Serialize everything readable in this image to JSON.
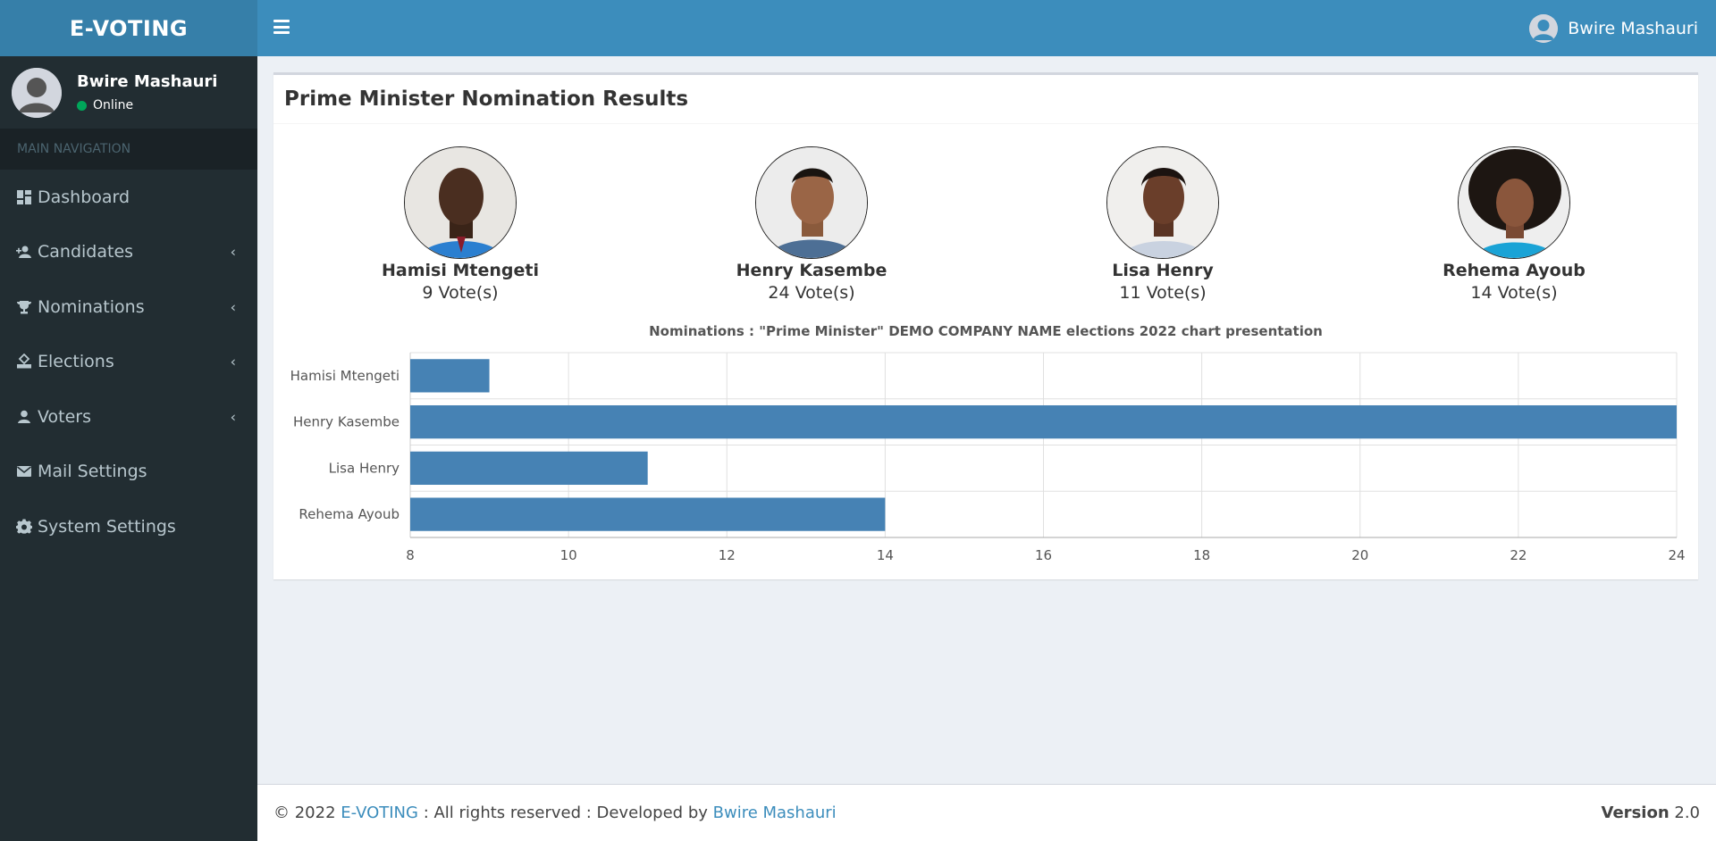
{
  "app": {
    "logo": "E-VOTING"
  },
  "sidebar": {
    "user": {
      "name": "Bwire Mashauri",
      "status": "Online"
    },
    "nav_header": "MAIN NAVIGATION",
    "items": [
      {
        "label": "Dashboard",
        "icon": "dashboard-icon",
        "has_children": false
      },
      {
        "label": "Candidates",
        "icon": "user-plus-icon",
        "has_children": true
      },
      {
        "label": "Nominations",
        "icon": "trophy-icon",
        "has_children": true
      },
      {
        "label": "Elections",
        "icon": "ballot-icon",
        "has_children": true
      },
      {
        "label": "Voters",
        "icon": "user-icon",
        "has_children": true
      },
      {
        "label": "Mail Settings",
        "icon": "envelope-icon",
        "has_children": false
      },
      {
        "label": "System Settings",
        "icon": "gear-icon",
        "has_children": false
      }
    ]
  },
  "header": {
    "user_name": "Bwire Mashauri"
  },
  "main": {
    "title": "Prime Minister Nomination Results",
    "candidates": [
      {
        "name": "Hamisi Mtengeti",
        "votes": "9 Vote(s)"
      },
      {
        "name": "Henry Kasembe",
        "votes": "24 Vote(s)"
      },
      {
        "name": "Lisa Henry",
        "votes": "11 Vote(s)"
      },
      {
        "name": "Rehema Ayoub",
        "votes": "14 Vote(s)"
      }
    ]
  },
  "chart_data": {
    "type": "bar",
    "orientation": "horizontal",
    "title": "Nominations : \"Prime Minister\" DEMO COMPANY NAME elections 2022 chart presentation",
    "categories": [
      "Hamisi Mtengeti",
      "Henry Kasembe",
      "Lisa Henry",
      "Rehema Ayoub"
    ],
    "values": [
      9,
      24,
      11,
      14
    ],
    "xlim": [
      8,
      24
    ],
    "xticks": [
      "8",
      "10",
      "12",
      "14",
      "16",
      "18",
      "20",
      "22",
      "24"
    ],
    "grid": true,
    "bar_color": "#4682b4"
  },
  "footer": {
    "copyright": "© 2022 ",
    "brand": "E-VOTING",
    "middle": " : All rights reserved : Developed by ",
    "developer": "Bwire Mashauri",
    "version_label": "Version",
    "version": " 2.0"
  },
  "colors": {
    "sidebar_bg": "#222d32",
    "header_bg": "#3c8dbc",
    "logo_bg": "#367fa9",
    "online": "#00a65a",
    "link": "#3c8dbc"
  }
}
